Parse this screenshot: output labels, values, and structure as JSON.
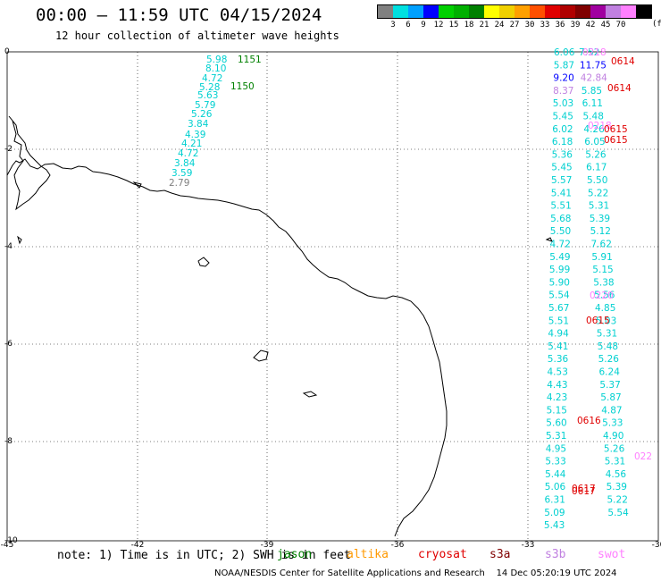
{
  "header": {
    "title": "00:00 — 11:59 UTC 04/15/2024",
    "subtitle": "12 hour collection of altimeter wave heights"
  },
  "scale": {
    "unit": "(ft)",
    "colors": [
      "#808080",
      "#00e0e0",
      "#00a0ff",
      "#0000ff",
      "#00d000",
      "#00b000",
      "#008000",
      "#ffff00",
      "#f0d000",
      "#ffa000",
      "#ff5000",
      "#e00000",
      "#b00000",
      "#800000",
      "#a000a0",
      "#c080e0",
      "#ff80ff",
      "#000000"
    ],
    "labels": [
      "3",
      "6",
      "9",
      "12",
      "15",
      "18",
      "21",
      "24",
      "27",
      "30",
      "33",
      "36",
      "39",
      "42",
      "45",
      "70"
    ]
  },
  "axes": {
    "x_ticks": [
      "-45",
      "-42",
      "-39",
      "-36",
      "-33",
      "-30"
    ],
    "y_ticks": [
      "0",
      "-2",
      "-4",
      "-6",
      "-8",
      "-10"
    ]
  },
  "passes": [
    {
      "label": "1151",
      "color": "#008000"
    },
    {
      "label": "1150",
      "color": "#008000"
    },
    {
      "label": "0218",
      "color": "#ff80ff"
    },
    {
      "label": "0614",
      "color": "#e00000"
    },
    {
      "label": "0614",
      "color": "#e00000"
    },
    {
      "label": "0218",
      "color": "#ff80ff"
    },
    {
      "label": "0615",
      "color": "#e00000"
    },
    {
      "label": "0615",
      "color": "#e00000"
    },
    {
      "label": "0220",
      "color": "#ff80ff"
    },
    {
      "label": "0615",
      "color": "#e00000"
    },
    {
      "label": "0616",
      "color": "#e00000"
    },
    {
      "label": "0617",
      "color": "#e00000"
    },
    {
      "label": "0617",
      "color": "#e00000"
    },
    {
      "label": "022",
      "color": "#ff80ff"
    }
  ],
  "track1": [
    "5.98",
    "8.10",
    "4.72",
    "5.28",
    "5.63",
    "5.79",
    "5.26",
    "3.84",
    "4.39",
    "4.21",
    "4.72",
    "3.84",
    "3.59",
    "2.79"
  ],
  "right_values": [
    "6.06",
    "7.52",
    "5.87",
    "11.75",
    "9.20",
    "42.84",
    "8.37",
    "5.85",
    "5.03",
    "6.11",
    "5.45",
    "5.48",
    "6.02",
    "4.26",
    "6.18",
    "6.05",
    "5.36",
    "5.26",
    "5.45",
    "6.17",
    "5.57",
    "5.50",
    "5.41",
    "5.22",
    "5.51",
    "5.31",
    "5.68",
    "5.39",
    "5.50",
    "5.12",
    "4.72",
    "7.62",
    "5.49",
    "5.91",
    "5.99",
    "5.15",
    "5.90",
    "5.38",
    "5.54",
    "5.56",
    "5.67",
    "4.85",
    "5.51",
    "5.03",
    "4.94",
    "5.31",
    "5.41",
    "5.48",
    "5.36",
    "5.26",
    "4.53",
    "6.24",
    "4.43",
    "5.37",
    "4.23",
    "5.87",
    "5.15",
    "4.87",
    "5.60",
    "5.33",
    "5.31",
    "4.90",
    "4.95",
    "5.26",
    "5.33",
    "5.31",
    "5.44",
    "4.56",
    "5.06",
    "5.39",
    "6.31",
    "5.22",
    "5.09",
    "5.54",
    "5.43"
  ],
  "note": {
    "text": "note: 1) Time is in UTC; 2) SWH is in feet",
    "sats": [
      {
        "name": "jason",
        "color": "#008000"
      },
      {
        "name": "altika",
        "color": "#ff9900"
      },
      {
        "name": "cryosat",
        "color": "#e00000"
      },
      {
        "name": "s3a",
        "color": "#800000"
      },
      {
        "name": "s3b",
        "color": "#c080e0"
      },
      {
        "name": "swot",
        "color": "#ff80ff"
      }
    ]
  },
  "footer": "NOAA/NESDIS Center for Satellite Applications and Research    14 Dec 05:20:19 UTC 2024"
}
